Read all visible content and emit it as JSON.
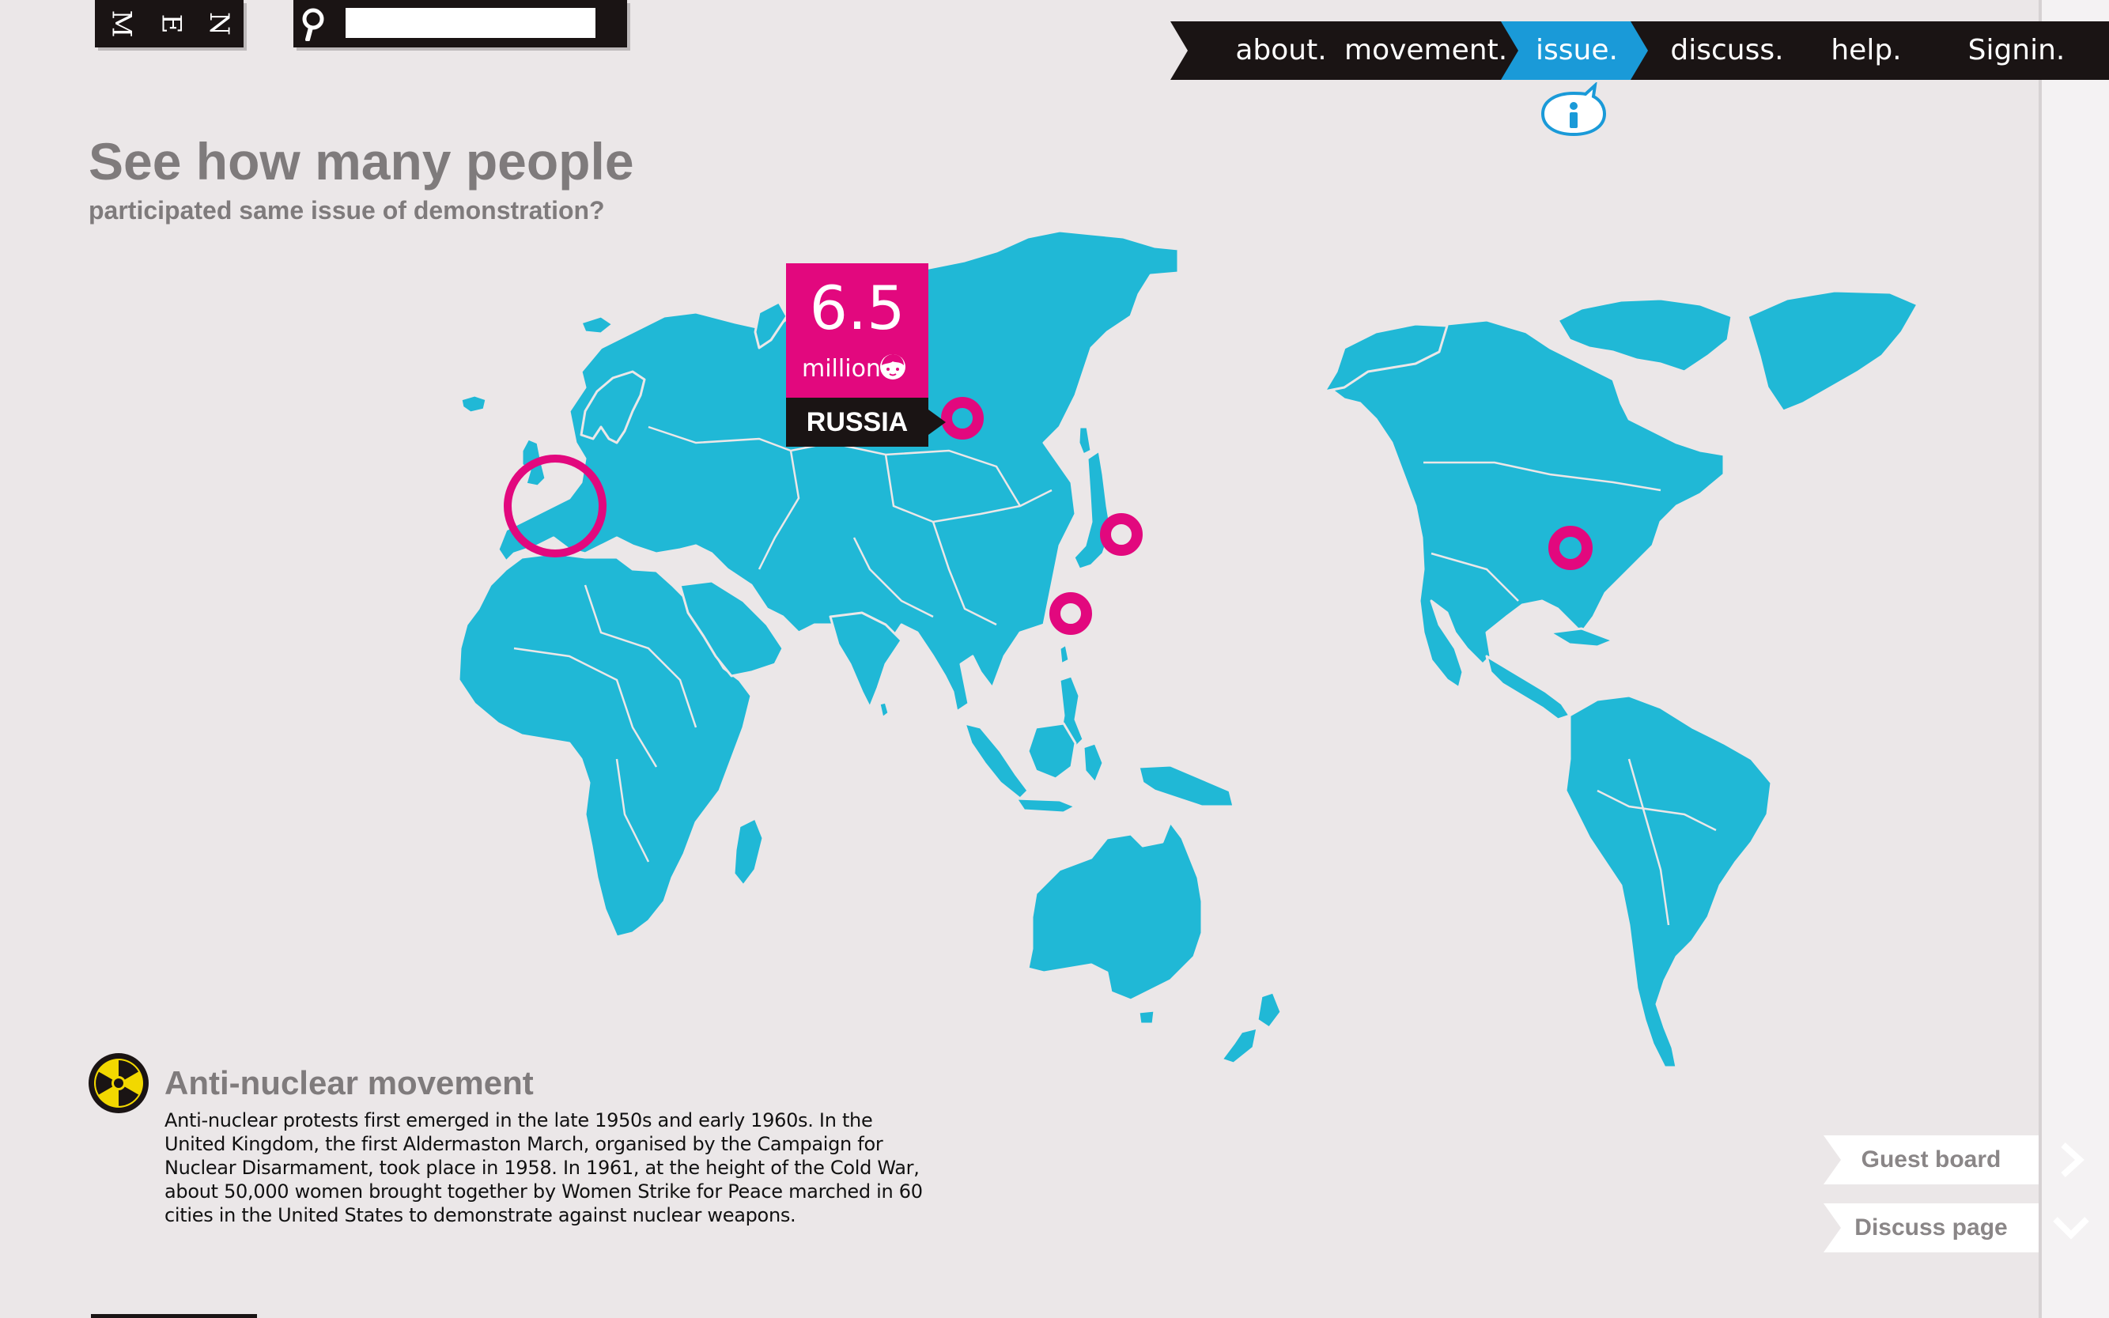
{
  "menu": {
    "letters": [
      "M",
      "E",
      "N"
    ]
  },
  "search": {
    "value": "",
    "placeholder": ""
  },
  "nav": {
    "items": [
      {
        "label": "about.",
        "active": false
      },
      {
        "label": "movement.",
        "active": false
      },
      {
        "label": "issue.",
        "active": true
      },
      {
        "label": "discuss.",
        "active": false
      },
      {
        "label": "help.",
        "active": false
      },
      {
        "label": "Signin.",
        "active": false
      }
    ]
  },
  "header": {
    "title": "See how many people",
    "subtitle": "participated same issue of demonstration?"
  },
  "callout": {
    "value": "6.5",
    "unit": "million",
    "country": "RUSSIA"
  },
  "map": {
    "land_color": "#20b8d6",
    "marker_color": "#e2087e",
    "markers": [
      "Europe",
      "Russia",
      "Japan",
      "China",
      "United States"
    ]
  },
  "movement": {
    "title": "Anti-nuclear movement",
    "description": "Anti-nuclear protests first emerged in the late 1950s and early 1960s. In the United Kingdom, the first Aldermaston March, organised by the Campaign for Nuclear Disarmament, took place in 1958. In 1961, at the height of the Cold War, about 50,000 women brought together by Women Strike for Peace marched in 60 cities in the United States to demonstrate against nuclear weapons."
  },
  "side_buttons": {
    "guest_board": "Guest board",
    "discuss_page": "Discuss page"
  },
  "colors": {
    "accent": "#e2087e",
    "active_nav": "#1a9ad8",
    "dark": "#1a1414",
    "background": "#ebe7e8"
  }
}
